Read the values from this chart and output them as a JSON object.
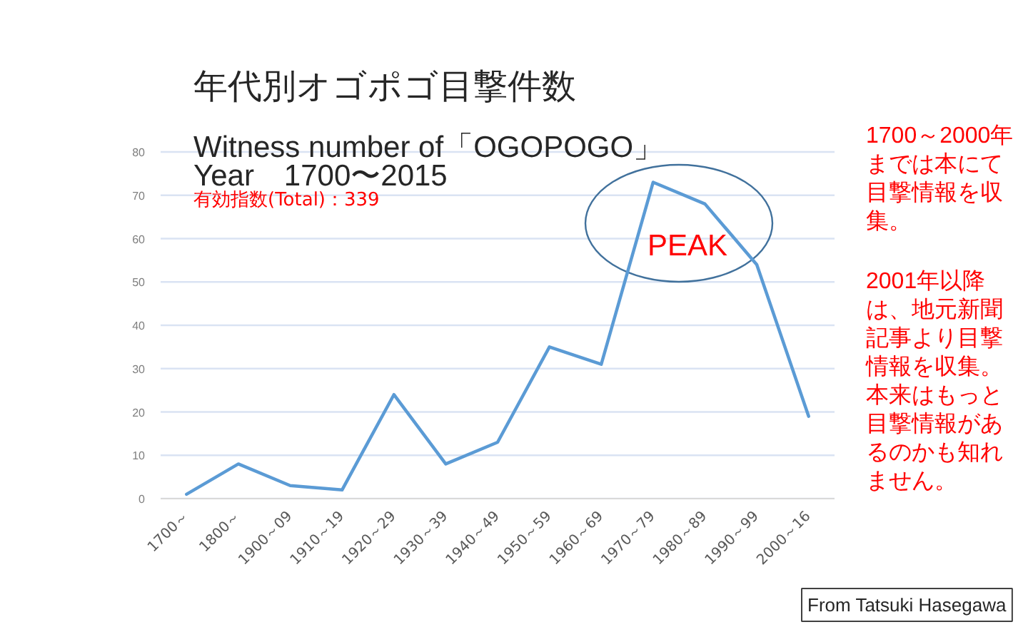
{
  "chart_data": {
    "type": "line",
    "title": "年代別オゴポゴ目撃件数",
    "subtitle": "Witness number of「OGOPOGO」\nYear　1700〜2015",
    "categories": [
      "1700～",
      "1800～",
      "1900～09",
      "1910～19",
      "1920～29",
      "1930～39",
      "1940～49",
      "1950～59",
      "1960～69",
      "1970～79",
      "1980～89",
      "1990～99",
      "2000～16"
    ],
    "values": [
      1,
      8,
      3,
      2,
      24,
      8,
      13,
      35,
      31,
      73,
      68,
      54,
      19
    ],
    "color": "#5b9bd5",
    "ylim": [
      0,
      80
    ],
    "yticks": [
      0,
      10,
      20,
      30,
      40,
      50,
      60,
      70,
      80
    ],
    "grid": "y",
    "annotations": [
      "有効指数(Total)：339",
      "PEAK",
      "1700～2000年までは本にて目撃情報を収集。",
      "2001年以降は、地元新聞記事より目撃情報を収集。本来はもっと目撃情報があるのかも知れません。",
      "From Tatsuki Hasegawa"
    ]
  }
}
